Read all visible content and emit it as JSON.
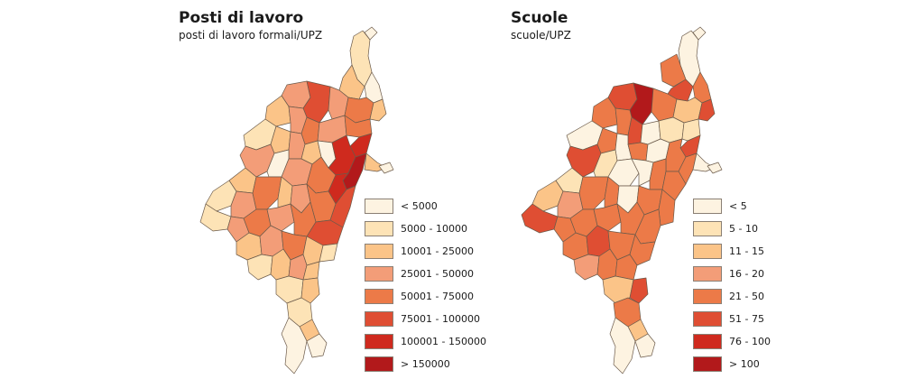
{
  "maps": [
    {
      "title": "Posti di lavoro",
      "subtitle": "posti di lavoro formali/UPZ",
      "legend": [
        {
          "label": "< 5000",
          "color": "#fdf3e1"
        },
        {
          "label": "5000 - 10000",
          "color": "#fde3b6"
        },
        {
          "label": "10001 - 25000",
          "color": "#fbc488"
        },
        {
          "label": "25001 - 50000",
          "color": "#f39d78"
        },
        {
          "label": "50001 - 75000",
          "color": "#ec7a48"
        },
        {
          "label": "75001 - 100000",
          "color": "#df4e33"
        },
        {
          "label": "100001 - 150000",
          "color": "#cf2a1e"
        },
        {
          "label": "> 150000",
          "color": "#b2191b"
        }
      ]
    },
    {
      "title": "Scuole",
      "subtitle": "scuole/UPZ",
      "legend": [
        {
          "label": "< 5",
          "color": "#fdf3e1"
        },
        {
          "label": "5 - 10",
          "color": "#fde3b6"
        },
        {
          "label": "11 - 15",
          "color": "#fbc488"
        },
        {
          "label": "16 - 20",
          "color": "#f39d78"
        },
        {
          "label": "21 - 50",
          "color": "#ec7a48"
        },
        {
          "label": "51 - 75",
          "color": "#df4e33"
        },
        {
          "label": "76 - 100",
          "color": "#cf2a1e"
        },
        {
          "label": "> 100",
          "color": "#b2191b"
        }
      ]
    }
  ]
}
